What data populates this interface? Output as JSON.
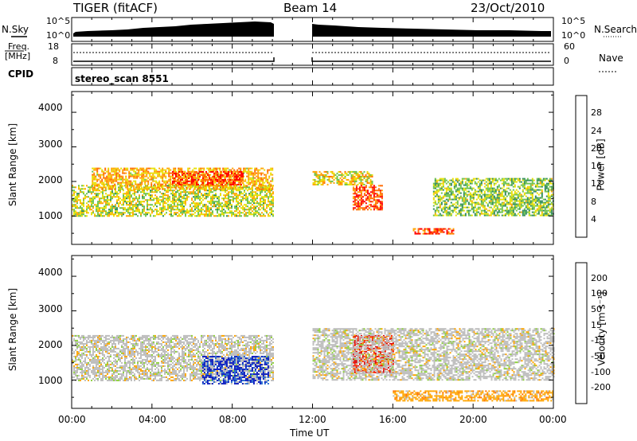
{
  "header": {
    "title": "TIGER (fitACF)",
    "beam": "Beam 14",
    "date": "23/Oct/2010"
  },
  "top_strip": {
    "nsky_label": "N.Sky",
    "nsky_ticks": [
      "10^5",
      "10^0"
    ],
    "nsearch_label": "N.Search",
    "nsearch_ticks": [
      "10^5",
      "10^0"
    ],
    "freq_label": "Freq.",
    "freq_unit": "[MHz]",
    "freq_ticks": [
      "18",
      "8"
    ],
    "nave_label": "Nave",
    "nave_ticks": [
      "60",
      "0"
    ],
    "cpid_label": "CPID",
    "cpid_value": "stereo_scan 8551"
  },
  "x_axis": {
    "label": "Time UT",
    "ticks": [
      "00:00",
      "04:00",
      "08:00",
      "12:00",
      "16:00",
      "20:00",
      "00:00"
    ]
  },
  "power_panel": {
    "ylabel": "Slant Range [km]",
    "yticks": [
      "1000",
      "2000",
      "3000",
      "4000"
    ],
    "colorbar_label": "Power [dB]",
    "colorbar_ticks": [
      "4",
      "8",
      "12",
      "16",
      "20",
      "24",
      "28"
    ],
    "colors": [
      "#0000ff",
      "#1e4fb0",
      "#2e8b57",
      "#6cc24a",
      "#e8e000",
      "#ffa500",
      "#ff6a00",
      "#ff0000"
    ]
  },
  "velocity_panel": {
    "ylabel": "Slant Range [km]",
    "yticks": [
      "1000",
      "2000",
      "3000",
      "4000"
    ],
    "colorbar_label": "Velocity [m s⁻¹]",
    "colorbar_ticks": [
      "200",
      "100",
      "50",
      "15",
      "-15",
      "-50",
      "-100",
      "-200"
    ],
    "colors": [
      "#1020c0",
      "#2b6fd0",
      "#3a9a5a",
      "#8ed13c",
      "#bdbdbd",
      "#ffa500",
      "#ff7000",
      "#ff2000",
      "#e00000"
    ]
  },
  "chart_data": [
    {
      "type": "heatmap",
      "title": "Power [dB]",
      "xlabel": "Time UT",
      "ylabel": "Slant Range [km]",
      "xlim": [
        "00:00",
        "24:00"
      ],
      "ylim": [
        180,
        4600
      ],
      "colorbar": {
        "label": "Power [dB]",
        "range": [
          0,
          30
        ],
        "ticks": [
          4,
          8,
          12,
          16,
          20,
          24,
          28
        ]
      },
      "data_gap": [
        "10:00",
        "12:00"
      ],
      "bands": [
        {
          "start_hr": 0.0,
          "end_hr": 10.0,
          "range_start_km": 1000,
          "range_end_km": 1900,
          "power_db": 16
        },
        {
          "start_hr": 1.0,
          "end_hr": 10.0,
          "range_start_km": 1800,
          "range_end_km": 2400,
          "power_db": 20
        },
        {
          "start_hr": 5.0,
          "end_hr": 8.5,
          "range_start_km": 1900,
          "range_end_km": 2300,
          "power_db": 26
        },
        {
          "start_hr": 12.0,
          "end_hr": 15.0,
          "range_start_km": 1900,
          "range_end_km": 2300,
          "power_db": 18
        },
        {
          "start_hr": 14.0,
          "end_hr": 15.5,
          "range_start_km": 1200,
          "range_end_km": 1900,
          "power_db": 26
        },
        {
          "start_hr": 17.0,
          "end_hr": 19.0,
          "range_start_km": 500,
          "range_end_km": 650,
          "power_db": 26
        },
        {
          "start_hr": 18.0,
          "end_hr": 24.0,
          "range_start_km": 1000,
          "range_end_km": 2100,
          "power_db": 14
        }
      ]
    },
    {
      "type": "heatmap",
      "title": "Velocity [m s⁻¹]",
      "xlabel": "Time UT",
      "ylabel": "Slant Range [km]",
      "xlim": [
        "00:00",
        "24:00"
      ],
      "ylim": [
        180,
        4600
      ],
      "colorbar": {
        "label": "Velocity [m s⁻¹]",
        "range": [
          -250,
          250
        ],
        "ticks": [
          200,
          100,
          50,
          15,
          -15,
          -50,
          -100,
          -200
        ]
      },
      "data_gap": [
        "10:00",
        "12:00"
      ],
      "bands": [
        {
          "start_hr": 0.0,
          "end_hr": 10.0,
          "range_start_km": 1000,
          "range_end_km": 2300,
          "velocity": 0
        },
        {
          "start_hr": 6.5,
          "end_hr": 9.8,
          "range_start_km": 900,
          "range_end_km": 1700,
          "velocity": 200
        },
        {
          "start_hr": 14.0,
          "end_hr": 16.0,
          "range_start_km": 1200,
          "range_end_km": 2300,
          "velocity": -200
        },
        {
          "start_hr": 16.0,
          "end_hr": 24.0,
          "range_start_km": 400,
          "range_end_km": 700,
          "velocity": -50
        },
        {
          "start_hr": 12.0,
          "end_hr": 24.0,
          "range_start_km": 1000,
          "range_end_km": 2500,
          "velocity": 0
        }
      ]
    }
  ]
}
